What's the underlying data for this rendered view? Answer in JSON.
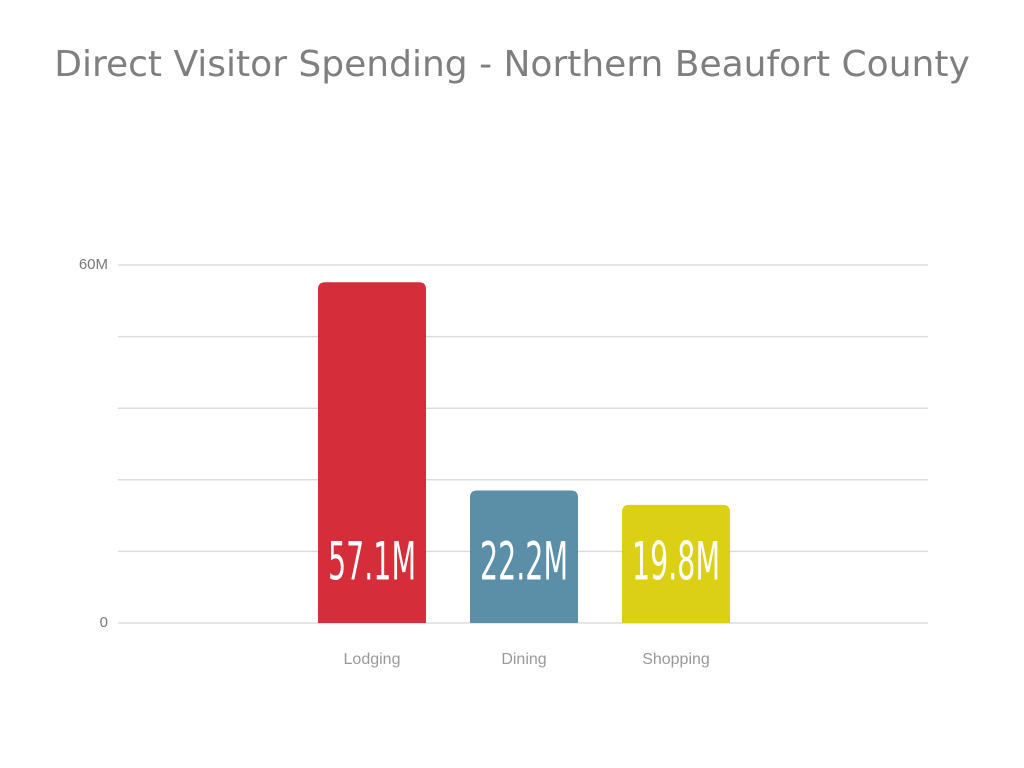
{
  "chart_data": {
    "type": "bar",
    "title": "Direct Visitor Spending - Northern Beaufort County",
    "categories": [
      "Lodging",
      "Dining",
      "Shopping"
    ],
    "values": [
      57100000,
      22200000,
      19800000
    ],
    "value_labels": [
      "57.1M",
      "22.2M",
      "19.8M"
    ],
    "colors": [
      "#d62d3a",
      "#5b8fa8",
      "#dcd016"
    ],
    "ylim": [
      0,
      60000000
    ],
    "yticks": [
      0,
      {
        "value": 60000000,
        "label": "60M"
      }
    ],
    "ygrid": [
      12000000,
      24000000,
      36000000,
      48000000
    ],
    "grid": true
  }
}
